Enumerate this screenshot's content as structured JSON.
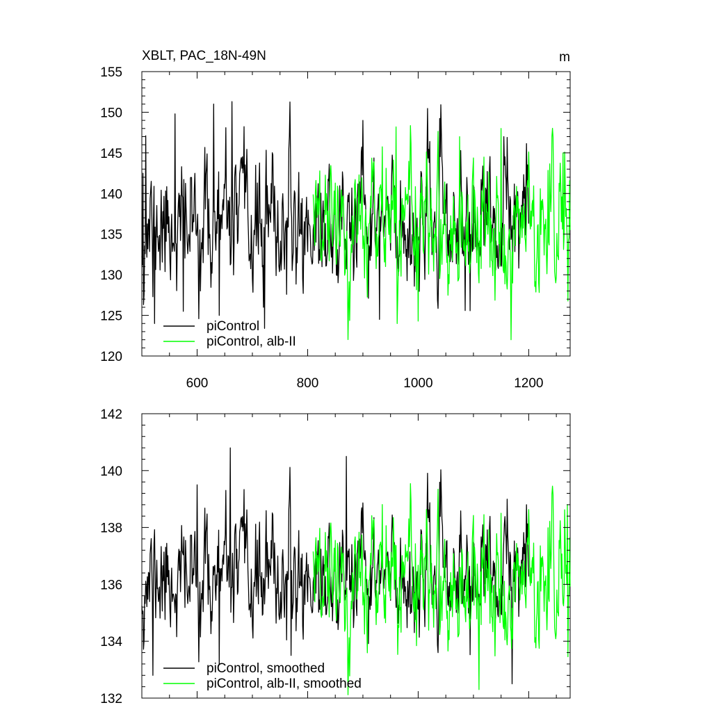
{
  "chart_data": [
    {
      "type": "line",
      "title": "XBLT, PAC_18N-49N",
      "units": "m",
      "xlim": [
        500,
        1275
      ],
      "ylim": [
        120,
        155
      ],
      "xticks": [
        600,
        800,
        1000,
        1200
      ],
      "yticks": [
        120,
        125,
        130,
        135,
        140,
        145,
        150,
        155
      ],
      "xtick_labels": [
        "600",
        "800",
        "1000",
        "1200"
      ],
      "ytick_labels": [
        "120",
        "125",
        "130",
        "135",
        "140",
        "145",
        "150",
        "155"
      ],
      "grid": false,
      "legend_position": "bottom-left",
      "series": [
        {
          "name": "piControl",
          "color": "#000000",
          "x_range": [
            500,
            1200
          ],
          "mean": 136,
          "std": 3.9,
          "seed": 11,
          "features": [
            [
              502,
              142.5
            ],
            [
              507,
              147.1
            ],
            [
              520,
              127.3
            ],
            [
              523,
              124
            ],
            [
              560,
              149.8
            ],
            [
              575,
              125.5
            ],
            [
              630,
              151
            ],
            [
              640,
              125
            ],
            [
              663,
              151.3
            ],
            [
              720,
              126
            ],
            [
              722,
              123.4
            ],
            [
              900,
              149
            ],
            [
              930,
              124.5
            ],
            [
              1085,
              125.6
            ],
            [
              1155,
              147
            ]
          ]
        },
        {
          "name": "piControl, alb-II",
          "color": "#00ff00",
          "x_range": [
            810,
            1275
          ],
          "mean": 136.5,
          "std": 3.9,
          "seed": 29,
          "features": [
            [
              960,
              148.2
            ],
            [
              962,
              124
            ],
            [
              1000,
              124.3
            ],
            [
              1075,
              147
            ],
            [
              1150,
              148
            ],
            [
              1168,
              122
            ],
            [
              1262,
              145
            ]
          ]
        }
      ]
    },
    {
      "type": "line",
      "title": "",
      "xlim": [
        500,
        1275
      ],
      "ylim": [
        132,
        142
      ],
      "xticks": [
        600,
        800,
        1000,
        1200
      ],
      "yticks": [
        132,
        134,
        136,
        138,
        140,
        142
      ],
      "ytick_labels": [
        "132",
        "134",
        "136",
        "138",
        "140",
        "142"
      ],
      "grid": false,
      "legend_position": "bottom-left",
      "series": [
        {
          "name": "piControl, smoothed",
          "color": "#000000",
          "x_range": [
            500,
            1200
          ],
          "mean": 136.2,
          "std": 1.0,
          "seed": 11,
          "features": [
            [
              520,
              132.8
            ],
            [
              600,
              139.5
            ],
            [
              640,
              133.2
            ],
            [
              660,
              140.8
            ],
            [
              770,
              133.5
            ],
            [
              870,
              140.5
            ],
            [
              1170,
              132.5
            ]
          ]
        },
        {
          "name": "piControl, alb-II, smoothed",
          "color": "#00ff00",
          "x_range": [
            810,
            1275
          ],
          "mean": 136.2,
          "std": 1.1,
          "seed": 29,
          "features": [
            [
              1110,
              132.3
            ],
            [
              1150,
              138.5
            ],
            [
              1270,
              138.8
            ]
          ]
        }
      ]
    }
  ]
}
